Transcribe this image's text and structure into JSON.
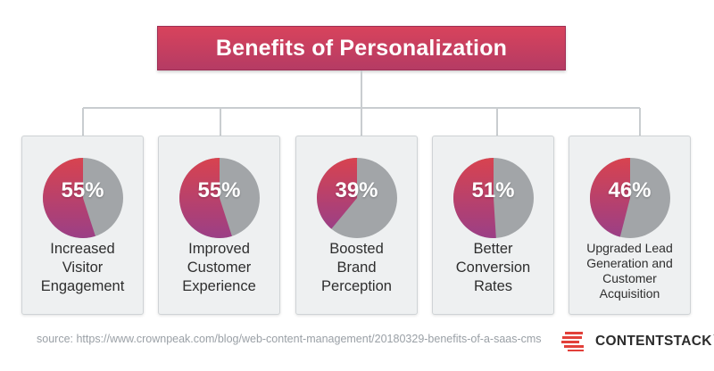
{
  "header": {
    "title": "Benefits of Personalization"
  },
  "chart_data": {
    "type": "pie",
    "title": "Benefits of Personalization",
    "categories": [
      "Increased Visitor Engagement",
      "Improved Customer Experience",
      "Boosted Brand Perception",
      "Better Conversion Rates",
      "Upgraded Lead Generation and Customer Acquisition"
    ],
    "values": [
      55,
      55,
      39,
      51,
      46
    ],
    "unit": "%",
    "cards": [
      {
        "value": 55,
        "value_label": "55%",
        "label": "Increased\nVisitor\nEngagement"
      },
      {
        "value": 55,
        "value_label": "55%",
        "label": "Improved\nCustomer\nExperience"
      },
      {
        "value": 39,
        "value_label": "39%",
        "label": "Boosted\nBrand\nPerception"
      },
      {
        "value": 51,
        "value_label": "51%",
        "label": "Better\nConversion\nRates"
      },
      {
        "value": 46,
        "value_label": "46%",
        "label": "Upgraded Lead\nGeneration and\nCustomer\nAcquisition"
      }
    ],
    "colors": {
      "highlight_top": "#d8434f",
      "highlight_bottom": "#9b3f86",
      "remainder": "#a2a5a8"
    }
  },
  "footer": {
    "source": "source: https://www.crownpeak.com/blog/web-content-management/20180329-benefits-of-a-saas-cms",
    "brand": "CONTENTSTACK",
    "brand_mark": "™",
    "brand_icon": "contentstack-logo-icon"
  }
}
